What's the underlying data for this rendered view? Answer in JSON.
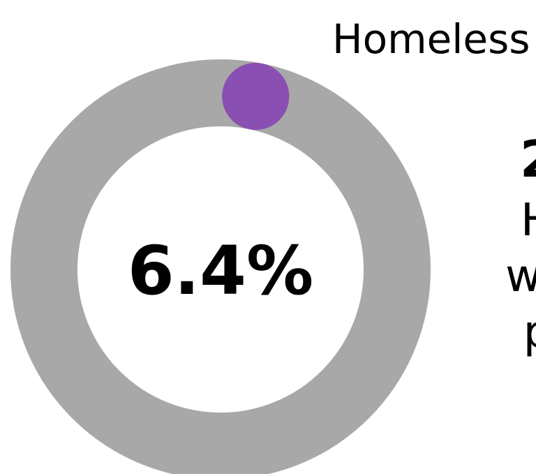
{
  "header": {
    "label": "Homeless"
  },
  "chart_data": {
    "type": "pie",
    "style": "donut",
    "values": [
      6.4,
      93.6
    ],
    "center_label": "6.4%",
    "colors": {
      "highlight": "#8a4fb3",
      "track": "#a8a8a8"
    }
  },
  "side_text": {
    "stat": "2",
    "lines": [
      "H",
      "we",
      "p"
    ]
  }
}
